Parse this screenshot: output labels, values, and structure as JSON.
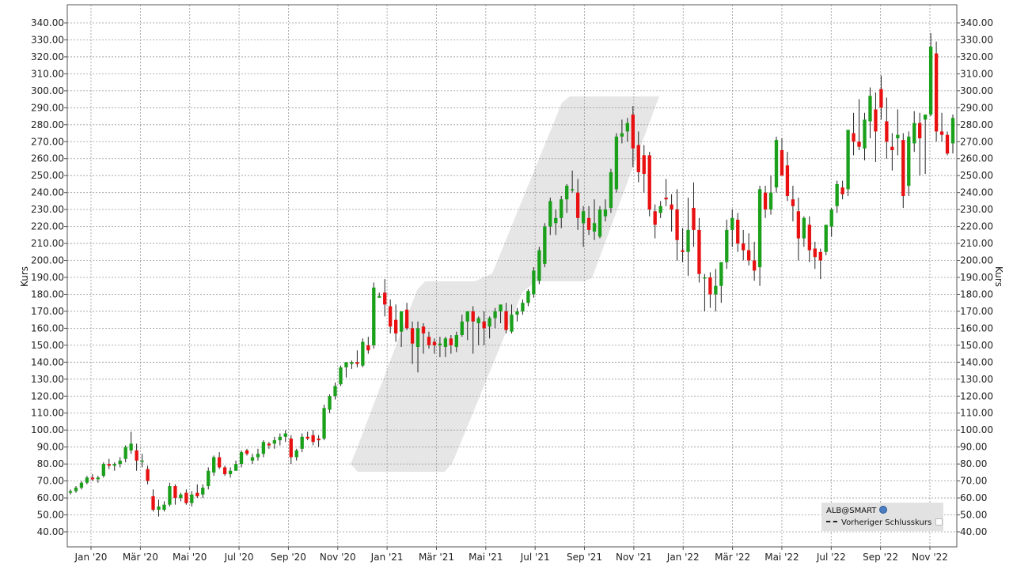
{
  "chart_data": {
    "type": "candlestick",
    "ylabel": "Kurs",
    "ylim": [
      35,
      345
    ],
    "y_ticks": [
      "40.00",
      "50.00",
      "60.00",
      "70.00",
      "80.00",
      "90.00",
      "100.00",
      "110.00",
      "120.00",
      "130.00",
      "140.00",
      "150.00",
      "160.00",
      "170.00",
      "180.00",
      "190.00",
      "200.00",
      "210.00",
      "220.00",
      "230.00",
      "240.00",
      "250.00",
      "260.00",
      "270.00",
      "280.00",
      "290.00",
      "300.00",
      "310.00",
      "320.00",
      "330.00",
      "340.00"
    ],
    "x_ticks": [
      "Jan '20",
      "Mär '20",
      "Mai '20",
      "Jul '20",
      "Sep '20",
      "Nov '20",
      "Jan '21",
      "Mär '21",
      "Mai '21",
      "Jul '21",
      "Sep '21",
      "Nov '21",
      "Jan '22",
      "Mär '22",
      "Mai '22",
      "Jul '22",
      "Sep '22",
      "Nov '22"
    ],
    "grid": true,
    "up_color": "#1aa01a",
    "down_color": "#e81010",
    "candles": [
      {
        "o": 63,
        "h": 65,
        "l": 62,
        "c": 64
      },
      {
        "o": 64,
        "h": 67,
        "l": 63,
        "c": 66
      },
      {
        "o": 66,
        "h": 70,
        "l": 65,
        "c": 69
      },
      {
        "o": 69,
        "h": 73,
        "l": 68,
        "c": 72
      },
      {
        "o": 72,
        "h": 74,
        "l": 70,
        "c": 71
      },
      {
        "o": 71,
        "h": 73,
        "l": 69,
        "c": 72
      },
      {
        "o": 73,
        "h": 81,
        "l": 72,
        "c": 80
      },
      {
        "o": 80,
        "h": 83,
        "l": 77,
        "c": 79
      },
      {
        "o": 79,
        "h": 81,
        "l": 76,
        "c": 80
      },
      {
        "o": 80,
        "h": 84,
        "l": 78,
        "c": 82
      },
      {
        "o": 83,
        "h": 91,
        "l": 81,
        "c": 90
      },
      {
        "o": 88,
        "h": 99,
        "l": 86,
        "c": 92
      },
      {
        "o": 88,
        "h": 92,
        "l": 76,
        "c": 82
      },
      {
        "o": 82,
        "h": 86,
        "l": 78,
        "c": 82
      },
      {
        "o": 77,
        "h": 79,
        "l": 68,
        "c": 70
      },
      {
        "o": 61,
        "h": 65,
        "l": 52,
        "c": 53
      },
      {
        "o": 53,
        "h": 59,
        "l": 49,
        "c": 55
      },
      {
        "o": 53,
        "h": 58,
        "l": 52,
        "c": 56
      },
      {
        "o": 56,
        "h": 69,
        "l": 55,
        "c": 67
      },
      {
        "o": 67,
        "h": 68,
        "l": 56,
        "c": 60
      },
      {
        "o": 60,
        "h": 63,
        "l": 58,
        "c": 62
      },
      {
        "o": 63,
        "h": 65,
        "l": 56,
        "c": 57
      },
      {
        "o": 57,
        "h": 64,
        "l": 55,
        "c": 62
      },
      {
        "o": 63,
        "h": 68,
        "l": 60,
        "c": 61
      },
      {
        "o": 62,
        "h": 68,
        "l": 60,
        "c": 66
      },
      {
        "o": 67,
        "h": 78,
        "l": 65,
        "c": 76
      },
      {
        "o": 75,
        "h": 85,
        "l": 73,
        "c": 84
      },
      {
        "o": 84,
        "h": 87,
        "l": 77,
        "c": 78
      },
      {
        "o": 78,
        "h": 79,
        "l": 73,
        "c": 74
      },
      {
        "o": 74,
        "h": 78,
        "l": 72,
        "c": 76
      },
      {
        "o": 76,
        "h": 82,
        "l": 76,
        "c": 80
      },
      {
        "o": 80,
        "h": 88,
        "l": 78,
        "c": 87
      },
      {
        "o": 88,
        "h": 89,
        "l": 85,
        "c": 86
      },
      {
        "o": 82,
        "h": 86,
        "l": 80,
        "c": 84
      },
      {
        "o": 84,
        "h": 89,
        "l": 82,
        "c": 86
      },
      {
        "o": 86,
        "h": 94,
        "l": 84,
        "c": 93
      },
      {
        "o": 92,
        "h": 93,
        "l": 89,
        "c": 91
      },
      {
        "o": 92,
        "h": 96,
        "l": 89,
        "c": 94
      },
      {
        "o": 94,
        "h": 98,
        "l": 91,
        "c": 96
      },
      {
        "o": 96,
        "h": 100,
        "l": 93,
        "c": 98
      },
      {
        "o": 95,
        "h": 97,
        "l": 80,
        "c": 84
      },
      {
        "o": 84,
        "h": 89,
        "l": 82,
        "c": 88
      },
      {
        "o": 89,
        "h": 98,
        "l": 87,
        "c": 96
      },
      {
        "o": 96,
        "h": 99,
        "l": 94,
        "c": 95
      },
      {
        "o": 97,
        "h": 100,
        "l": 91,
        "c": 93
      },
      {
        "o": 95,
        "h": 97,
        "l": 90,
        "c": 94
      },
      {
        "o": 95,
        "h": 115,
        "l": 94,
        "c": 113
      },
      {
        "o": 112,
        "h": 121,
        "l": 110,
        "c": 120
      },
      {
        "o": 120,
        "h": 128,
        "l": 118,
        "c": 126
      },
      {
        "o": 127,
        "h": 138,
        "l": 126,
        "c": 137
      },
      {
        "o": 137,
        "h": 140,
        "l": 131,
        "c": 140
      },
      {
        "o": 139,
        "h": 141,
        "l": 136,
        "c": 140
      },
      {
        "o": 140,
        "h": 147,
        "l": 137,
        "c": 139
      },
      {
        "o": 138,
        "h": 154,
        "l": 137,
        "c": 152
      },
      {
        "o": 150,
        "h": 155,
        "l": 145,
        "c": 147
      },
      {
        "o": 150,
        "h": 187,
        "l": 148,
        "c": 184
      },
      {
        "o": 178,
        "h": 181,
        "l": 178,
        "c": 179
      },
      {
        "o": 181,
        "h": 189,
        "l": 167,
        "c": 174
      },
      {
        "o": 173,
        "h": 177,
        "l": 157,
        "c": 161
      },
      {
        "o": 165,
        "h": 174,
        "l": 152,
        "c": 157
      },
      {
        "o": 158,
        "h": 170,
        "l": 149,
        "c": 170
      },
      {
        "o": 171,
        "h": 175,
        "l": 159,
        "c": 160
      },
      {
        "o": 160,
        "h": 164,
        "l": 139,
        "c": 151
      },
      {
        "o": 149,
        "h": 164,
        "l": 134,
        "c": 160
      },
      {
        "o": 161,
        "h": 163,
        "l": 145,
        "c": 157
      },
      {
        "o": 155,
        "h": 158,
        "l": 148,
        "c": 150
      },
      {
        "o": 152,
        "h": 154,
        "l": 145,
        "c": 150
      },
      {
        "o": 150,
        "h": 155,
        "l": 143,
        "c": 151
      },
      {
        "o": 149,
        "h": 155,
        "l": 143,
        "c": 154
      },
      {
        "o": 154,
        "h": 156,
        "l": 145,
        "c": 150
      },
      {
        "o": 149,
        "h": 158,
        "l": 146,
        "c": 156
      },
      {
        "o": 156,
        "h": 168,
        "l": 155,
        "c": 164
      },
      {
        "o": 164,
        "h": 169,
        "l": 153,
        "c": 170
      },
      {
        "o": 170,
        "h": 173,
        "l": 145,
        "c": 164
      },
      {
        "o": 163,
        "h": 167,
        "l": 150,
        "c": 166
      },
      {
        "o": 164,
        "h": 170,
        "l": 150,
        "c": 160
      },
      {
        "o": 161,
        "h": 167,
        "l": 154,
        "c": 166
      },
      {
        "o": 166,
        "h": 172,
        "l": 160,
        "c": 170
      },
      {
        "o": 170,
        "h": 174,
        "l": 163,
        "c": 174
      },
      {
        "o": 170,
        "h": 175,
        "l": 157,
        "c": 159
      },
      {
        "o": 158,
        "h": 174,
        "l": 157,
        "c": 168
      },
      {
        "o": 168,
        "h": 172,
        "l": 164,
        "c": 170
      },
      {
        "o": 170,
        "h": 177,
        "l": 168,
        "c": 175
      },
      {
        "o": 175,
        "h": 183,
        "l": 173,
        "c": 182
      },
      {
        "o": 180,
        "h": 196,
        "l": 178,
        "c": 194
      },
      {
        "o": 188,
        "h": 208,
        "l": 186,
        "c": 206
      },
      {
        "o": 198,
        "h": 222,
        "l": 196,
        "c": 220
      },
      {
        "o": 220,
        "h": 237,
        "l": 215,
        "c": 235
      },
      {
        "o": 222,
        "h": 230,
        "l": 215,
        "c": 225
      },
      {
        "o": 225,
        "h": 238,
        "l": 219,
        "c": 236
      },
      {
        "o": 236,
        "h": 245,
        "l": 228,
        "c": 244
      },
      {
        "o": 242,
        "h": 253,
        "l": 240,
        "c": 242
      },
      {
        "o": 240,
        "h": 248,
        "l": 218,
        "c": 225
      },
      {
        "o": 222,
        "h": 232,
        "l": 208,
        "c": 229
      },
      {
        "o": 225,
        "h": 232,
        "l": 215,
        "c": 218
      },
      {
        "o": 217,
        "h": 236,
        "l": 212,
        "c": 222
      },
      {
        "o": 214,
        "h": 232,
        "l": 213,
        "c": 230
      },
      {
        "o": 226,
        "h": 236,
        "l": 223,
        "c": 230
      },
      {
        "o": 231,
        "h": 254,
        "l": 228,
        "c": 252
      },
      {
        "o": 242,
        "h": 275,
        "l": 240,
        "c": 273
      },
      {
        "o": 273,
        "h": 283,
        "l": 269,
        "c": 275
      },
      {
        "o": 276,
        "h": 284,
        "l": 270,
        "c": 281
      },
      {
        "o": 286,
        "h": 291,
        "l": 255,
        "c": 266
      },
      {
        "o": 268,
        "h": 276,
        "l": 246,
        "c": 252
      },
      {
        "o": 262,
        "h": 268,
        "l": 240,
        "c": 251
      },
      {
        "o": 262,
        "h": 264,
        "l": 226,
        "c": 230
      },
      {
        "o": 229,
        "h": 233,
        "l": 213,
        "c": 221
      },
      {
        "o": 228,
        "h": 235,
        "l": 225,
        "c": 232
      },
      {
        "o": 237,
        "h": 248,
        "l": 232,
        "c": 236
      },
      {
        "o": 233,
        "h": 239,
        "l": 217,
        "c": 230
      },
      {
        "o": 230,
        "h": 242,
        "l": 200,
        "c": 212
      },
      {
        "o": 206,
        "h": 219,
        "l": 199,
        "c": 205
      },
      {
        "o": 205,
        "h": 237,
        "l": 191,
        "c": 218
      },
      {
        "o": 231,
        "h": 246,
        "l": 208,
        "c": 218
      },
      {
        "o": 218,
        "h": 225,
        "l": 187,
        "c": 192
      },
      {
        "o": 190,
        "h": 192,
        "l": 170,
        "c": 190
      },
      {
        "o": 190,
        "h": 193,
        "l": 172,
        "c": 180
      },
      {
        "o": 180,
        "h": 195,
        "l": 170,
        "c": 185
      },
      {
        "o": 185,
        "h": 197,
        "l": 175,
        "c": 199
      },
      {
        "o": 199,
        "h": 224,
        "l": 195,
        "c": 218
      },
      {
        "o": 218,
        "h": 230,
        "l": 208,
        "c": 225
      },
      {
        "o": 224,
        "h": 228,
        "l": 205,
        "c": 210
      },
      {
        "o": 210,
        "h": 218,
        "l": 200,
        "c": 206
      },
      {
        "o": 206,
        "h": 216,
        "l": 197,
        "c": 200
      },
      {
        "o": 200,
        "h": 211,
        "l": 188,
        "c": 194
      },
      {
        "o": 196,
        "h": 244,
        "l": 185,
        "c": 242
      },
      {
        "o": 240,
        "h": 244,
        "l": 225,
        "c": 230
      },
      {
        "o": 230,
        "h": 250,
        "l": 227,
        "c": 240
      },
      {
        "o": 243,
        "h": 273,
        "l": 240,
        "c": 271
      },
      {
        "o": 265,
        "h": 272,
        "l": 251,
        "c": 250
      },
      {
        "o": 256,
        "h": 264,
        "l": 235,
        "c": 238
      },
      {
        "o": 236,
        "h": 244,
        "l": 223,
        "c": 232
      },
      {
        "o": 229,
        "h": 237,
        "l": 200,
        "c": 213
      },
      {
        "o": 213,
        "h": 226,
        "l": 208,
        "c": 225
      },
      {
        "o": 221,
        "h": 226,
        "l": 199,
        "c": 206
      },
      {
        "o": 207,
        "h": 211,
        "l": 195,
        "c": 202
      },
      {
        "o": 205,
        "h": 207,
        "l": 189,
        "c": 200
      },
      {
        "o": 205,
        "h": 220,
        "l": 203,
        "c": 221
      },
      {
        "o": 220,
        "h": 231,
        "l": 214,
        "c": 230
      },
      {
        "o": 232,
        "h": 247,
        "l": 228,
        "c": 245
      },
      {
        "o": 243,
        "h": 247,
        "l": 236,
        "c": 239
      },
      {
        "o": 242,
        "h": 275,
        "l": 238,
        "c": 277
      },
      {
        "o": 275,
        "h": 287,
        "l": 262,
        "c": 270
      },
      {
        "o": 270,
        "h": 295,
        "l": 265,
        "c": 267
      },
      {
        "o": 266,
        "h": 287,
        "l": 259,
        "c": 283
      },
      {
        "o": 282,
        "h": 302,
        "l": 272,
        "c": 297
      },
      {
        "o": 289,
        "h": 299,
        "l": 258,
        "c": 276
      },
      {
        "o": 301,
        "h": 309,
        "l": 283,
        "c": 290
      },
      {
        "o": 282,
        "h": 296,
        "l": 260,
        "c": 270
      },
      {
        "o": 267,
        "h": 275,
        "l": 253,
        "c": 265
      },
      {
        "o": 272,
        "h": 289,
        "l": 262,
        "c": 274
      },
      {
        "o": 271,
        "h": 275,
        "l": 231,
        "c": 238
      },
      {
        "o": 244,
        "h": 276,
        "l": 238,
        "c": 273
      },
      {
        "o": 269,
        "h": 288,
        "l": 264,
        "c": 281
      },
      {
        "o": 281,
        "h": 287,
        "l": 250,
        "c": 272
      },
      {
        "o": 283,
        "h": 285,
        "l": 251,
        "c": 286
      },
      {
        "o": 286,
        "h": 334,
        "l": 285,
        "c": 326
      },
      {
        "o": 322,
        "h": 329,
        "l": 270,
        "c": 276
      },
      {
        "o": 276,
        "h": 287,
        "l": 270,
        "c": 274
      },
      {
        "o": 274,
        "h": 276,
        "l": 262,
        "c": 263
      },
      {
        "o": 269,
        "h": 286,
        "l": 263,
        "c": 284
      }
    ]
  },
  "legend": {
    "symbol": "ALB@SMART",
    "prev_close_label": "Vorheriger Schlusskurs"
  }
}
